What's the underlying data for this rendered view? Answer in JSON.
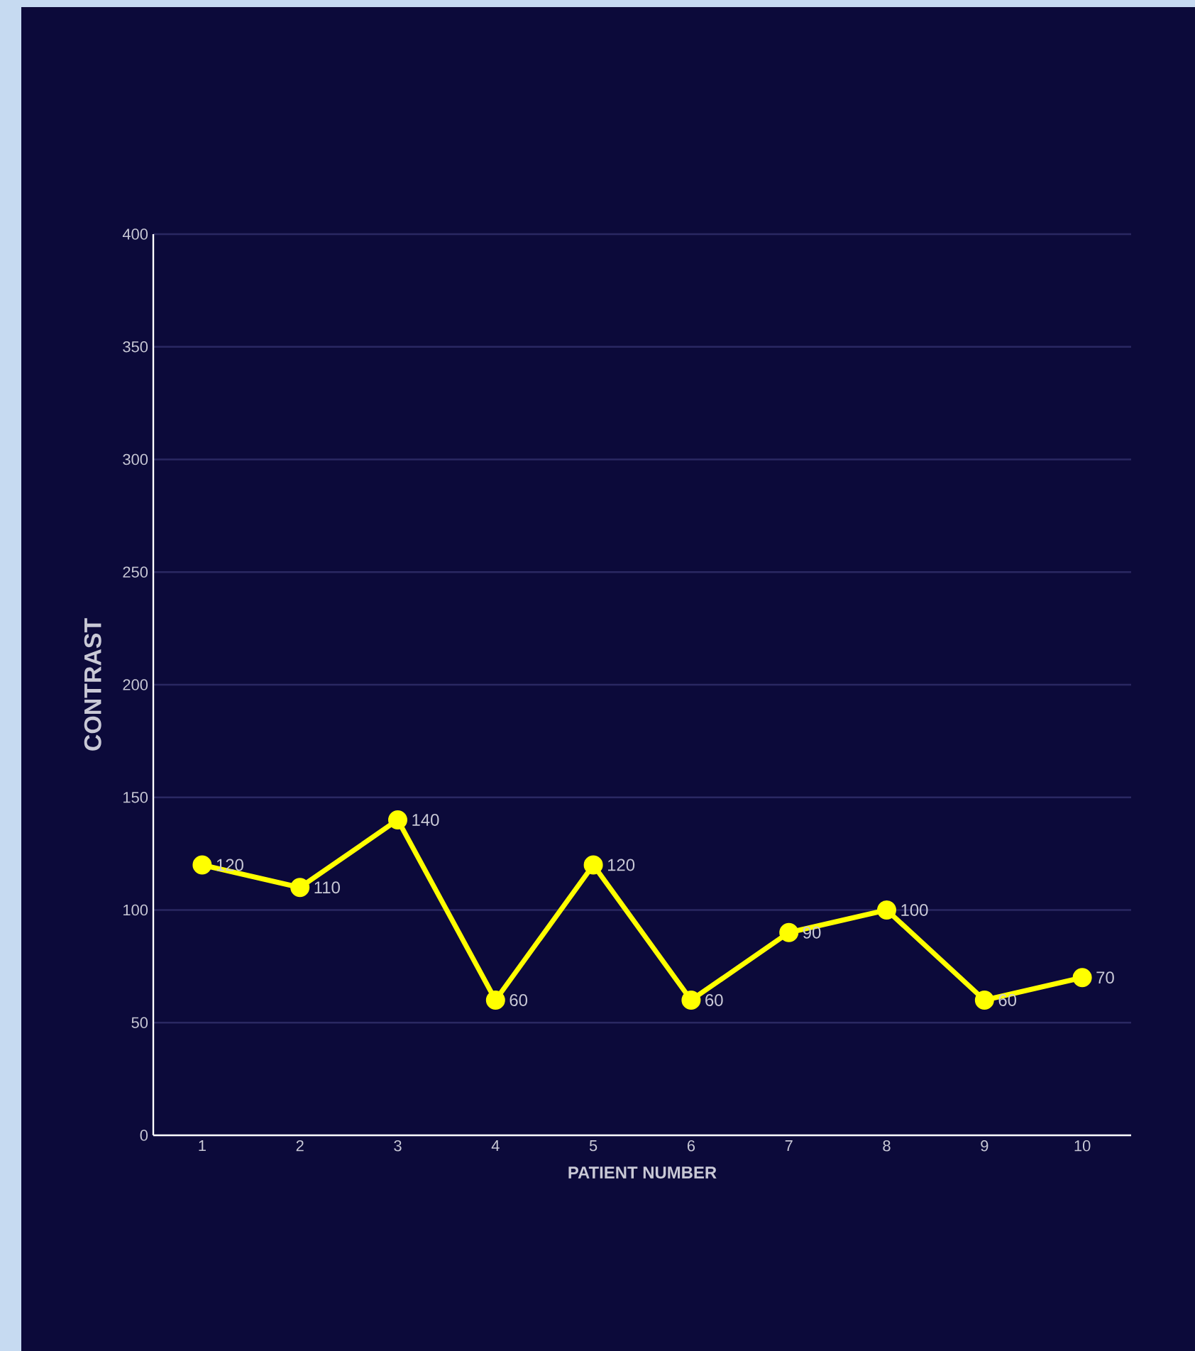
{
  "chart_data": {
    "type": "line",
    "xlabel": "PATIENT NUMBER",
    "ylabel": "CONTRAST",
    "categories": [
      "1",
      "2",
      "3",
      "4",
      "5",
      "6",
      "7",
      "8",
      "9",
      "10"
    ],
    "values": [
      120,
      110,
      140,
      60,
      120,
      60,
      90,
      100,
      60,
      70
    ],
    "color": "#ffff00",
    "ylim": [
      0,
      400
    ],
    "yticks": [
      0,
      50,
      100,
      150,
      200,
      250,
      300,
      350,
      400
    ],
    "grid": "y",
    "marker": "circle",
    "line_style": "solid",
    "data_labels": true
  }
}
